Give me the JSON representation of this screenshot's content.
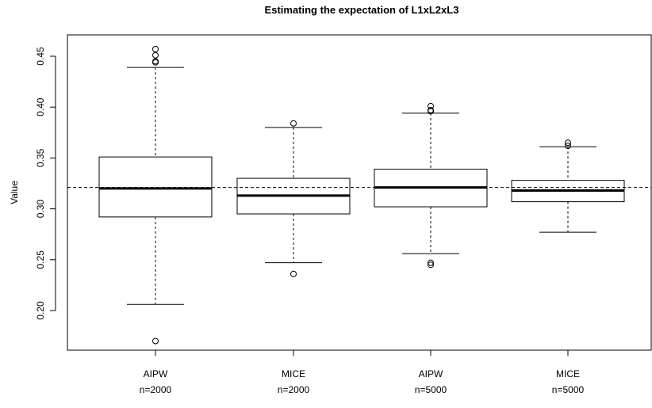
{
  "chart_data": {
    "type": "boxplot",
    "title": "Estimating the expectation of L1xL2xL3",
    "xlabel": "",
    "ylabel": "Value",
    "ylim": [
      0.16,
      0.475
    ],
    "yticks": [
      "0.20",
      "0.25",
      "0.30",
      "0.35",
      "0.40",
      "0.45"
    ],
    "reference_line": 0.321,
    "grid": false,
    "groups": [
      {
        "label_line1": "AIPW",
        "label_line2": "n=2000",
        "whisker_low": 0.206,
        "q1": 0.292,
        "median": 0.32,
        "q3": 0.351,
        "whisker_high": 0.439,
        "outliers": [
          0.17,
          0.444,
          0.445,
          0.451,
          0.457
        ]
      },
      {
        "label_line1": "MICE",
        "label_line2": "n=2000",
        "whisker_low": 0.247,
        "q1": 0.295,
        "median": 0.313,
        "q3": 0.33,
        "whisker_high": 0.38,
        "outliers": [
          0.236,
          0.384
        ]
      },
      {
        "label_line1": "AIPW",
        "label_line2": "n=5000",
        "whisker_low": 0.256,
        "q1": 0.302,
        "median": 0.321,
        "q3": 0.339,
        "whisker_high": 0.394,
        "outliers": [
          0.245,
          0.247,
          0.396,
          0.397,
          0.401
        ]
      },
      {
        "label_line1": "MICE",
        "label_line2": "n=5000",
        "whisker_low": 0.277,
        "q1": 0.307,
        "median": 0.318,
        "q3": 0.328,
        "whisker_high": 0.361,
        "outliers": [
          0.362,
          0.365
        ]
      }
    ]
  }
}
